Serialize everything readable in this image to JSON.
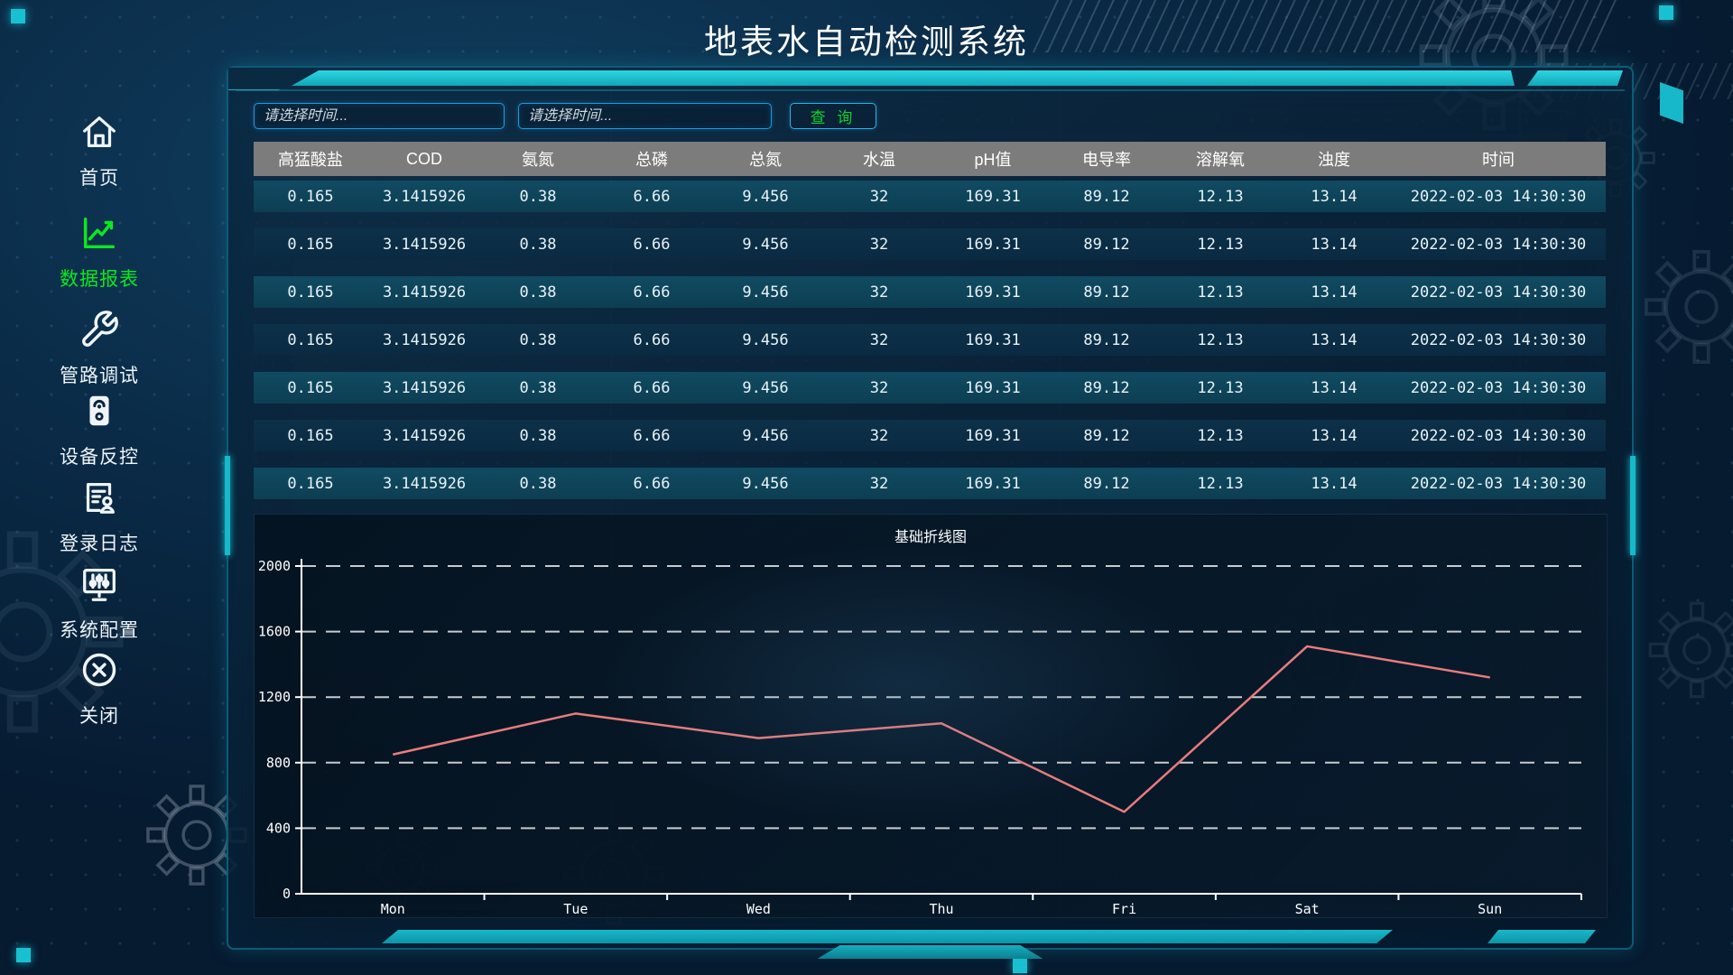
{
  "app": {
    "title": "地表水自动检测系统"
  },
  "colors": {
    "accent_cyan": "#17b8c9",
    "active_nav_green": "#0be81f",
    "query_green": "#0ad42c",
    "table_header_gray": "#7c7c7c",
    "row_teal": "#104b62",
    "row_navy": "#0c3149",
    "chart_line": "#e87c7c"
  },
  "sidebar": {
    "items": [
      {
        "key": "home",
        "label": "首页",
        "icon": "home-icon",
        "active": false
      },
      {
        "key": "data-report",
        "label": "数据报表",
        "icon": "line-chart-icon",
        "active": true
      },
      {
        "key": "pipeline-debug",
        "label": "管路调试",
        "icon": "wrench-icon",
        "active": false
      },
      {
        "key": "device-control",
        "label": "设备反控",
        "icon": "device-icon",
        "active": false
      },
      {
        "key": "login-log",
        "label": "登录日志",
        "icon": "log-document-icon",
        "active": false
      },
      {
        "key": "system-config",
        "label": "系统配置",
        "icon": "sliders-icon",
        "active": false
      },
      {
        "key": "close",
        "label": "关闭",
        "icon": "close-circle-icon",
        "active": false
      }
    ]
  },
  "filters": {
    "start_placeholder": "请选择时间...",
    "end_placeholder": "请选择时间...",
    "query_label": "查 询"
  },
  "table": {
    "columns": [
      "高猛酸盐",
      "COD",
      "氨氮",
      "总磷",
      "总氮",
      "水温",
      "pH值",
      "电导率",
      "溶解氧",
      "浊度",
      "时间"
    ],
    "rows": [
      [
        "0.165",
        "3.1415926",
        "0.38",
        "6.66",
        "9.456",
        "32",
        "169.31",
        "89.12",
        "12.13",
        "13.14",
        "2022-02-03 14:30:30"
      ],
      [
        "0.165",
        "3.1415926",
        "0.38",
        "6.66",
        "9.456",
        "32",
        "169.31",
        "89.12",
        "12.13",
        "13.14",
        "2022-02-03 14:30:30"
      ],
      [
        "0.165",
        "3.1415926",
        "0.38",
        "6.66",
        "9.456",
        "32",
        "169.31",
        "89.12",
        "12.13",
        "13.14",
        "2022-02-03 14:30:30"
      ],
      [
        "0.165",
        "3.1415926",
        "0.38",
        "6.66",
        "9.456",
        "32",
        "169.31",
        "89.12",
        "12.13",
        "13.14",
        "2022-02-03 14:30:30"
      ],
      [
        "0.165",
        "3.1415926",
        "0.38",
        "6.66",
        "9.456",
        "32",
        "169.31",
        "89.12",
        "12.13",
        "13.14",
        "2022-02-03 14:30:30"
      ],
      [
        "0.165",
        "3.1415926",
        "0.38",
        "6.66",
        "9.456",
        "32",
        "169.31",
        "89.12",
        "12.13",
        "13.14",
        "2022-02-03 14:30:30"
      ],
      [
        "0.165",
        "3.1415926",
        "0.38",
        "6.66",
        "9.456",
        "32",
        "169.31",
        "89.12",
        "12.13",
        "13.14",
        "2022-02-03 14:30:30"
      ]
    ]
  },
  "chart_data": {
    "type": "line",
    "title": "基础折线图",
    "categories": [
      "Mon",
      "Tue",
      "Wed",
      "Thu",
      "Fri",
      "Sat",
      "Sun"
    ],
    "series": [
      {
        "name": "基础折线图",
        "values": [
          850,
          1100,
          950,
          1040,
          500,
          1510,
          1320
        ],
        "color": "#e87c7c"
      }
    ],
    "xlabel": "",
    "ylabel": "",
    "ylim": [
      0,
      2000
    ],
    "ytick_step": 400,
    "grid": "dashed-horizontal",
    "legend": "none",
    "boundary_gap": true
  }
}
